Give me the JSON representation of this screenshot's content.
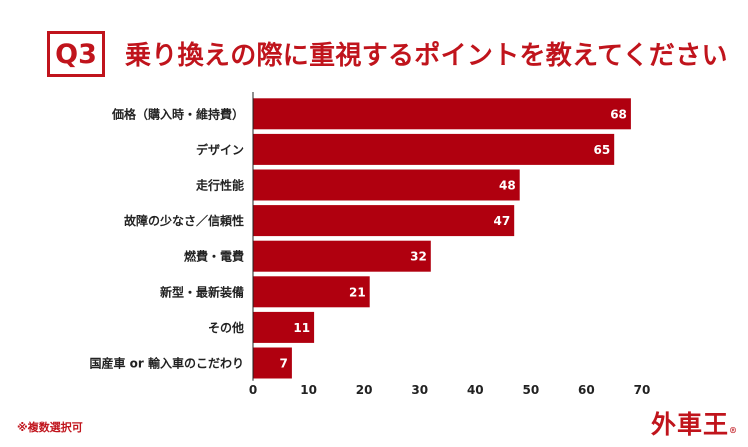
{
  "header": {
    "badge": "Q3",
    "title": "乗り換えの際に重視するポイントを教えてください"
  },
  "note": "※複数選択可",
  "logo": {
    "text": "外車王",
    "mark": "®"
  },
  "colors": {
    "accent": "#c0141c",
    "bar": "#b0000f",
    "axis": "#222222"
  },
  "chart_data": {
    "type": "bar",
    "orientation": "horizontal",
    "categories": [
      "価格（購入時・維持費）",
      "デザイン",
      "走行性能",
      "故障の少なさ／信頼性",
      "燃費・電費",
      "新型・最新装備",
      "その他",
      "国産車 or 輸入車のこだわり"
    ],
    "values": [
      68,
      65,
      48,
      47,
      32,
      21,
      11,
      7
    ],
    "xlim": [
      0,
      70
    ],
    "xticks": [
      "0",
      "10",
      "20",
      "30",
      "40",
      "50",
      "60",
      "70"
    ],
    "grid": false,
    "data_labels": true
  }
}
